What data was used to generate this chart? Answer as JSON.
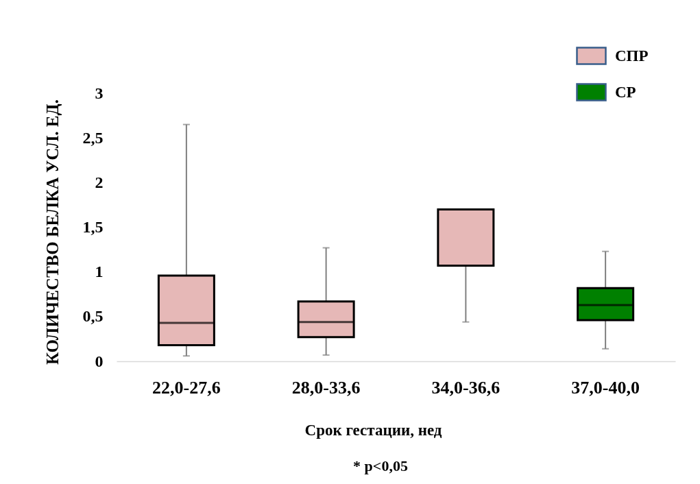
{
  "chart_data": {
    "type": "box",
    "xlabel": "Срок гестации, нед",
    "ylabel": "КОЛИЧЕСТВО БЕЛКА УСЛ. ЕД.",
    "annotations": [
      "* p<0,05"
    ],
    "categories": [
      "22,0-27,6",
      "28,0-33,6",
      "34,0-36,6",
      "37,0-40,0"
    ],
    "series": [
      {
        "name": "СПР",
        "color": "#e6b8b7",
        "boxes": [
          {
            "low": 0.06,
            "q1": 0.18,
            "median": 0.43,
            "q3": 0.96,
            "high": 2.65
          },
          {
            "low": 0.07,
            "q1": 0.27,
            "median": 0.44,
            "q3": 0.67,
            "high": 1.27
          },
          {
            "low": 0.44,
            "q1": 1.07,
            "median": 1.7,
            "q3": 1.7,
            "high": 1.7
          },
          null
        ]
      },
      {
        "name": "СР",
        "color": "#008000",
        "boxes": [
          null,
          null,
          null,
          {
            "low": 0.14,
            "q1": 0.46,
            "median": 0.63,
            "q3": 0.82,
            "high": 1.23
          }
        ]
      }
    ],
    "ylim": [
      0,
      3
    ],
    "yticks": [
      0,
      {
        "value": 0.5,
        "label": "0,5"
      },
      1,
      {
        "value": 1.5,
        "label": "1,5"
      },
      2,
      {
        "value": 2.5,
        "label": "2,5"
      },
      3
    ],
    "grid": false,
    "legend": "top right"
  }
}
